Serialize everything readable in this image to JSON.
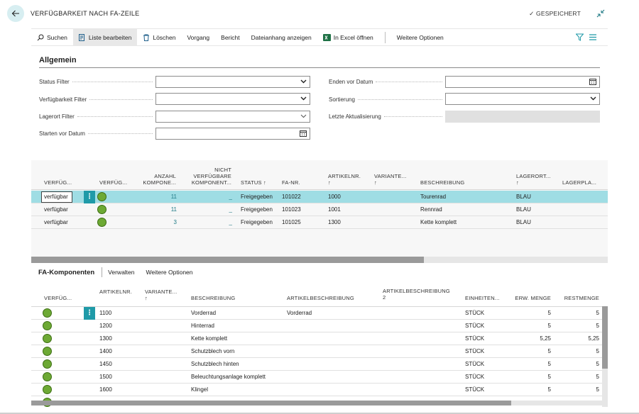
{
  "header": {
    "title": "VERFÜGBARKEIT NACH FA-ZEILE",
    "saved_label": "GESPEICHERT"
  },
  "actions": {
    "search": "Suchen",
    "edit_list": "Liste bearbeiten",
    "delete": "Löschen",
    "process": "Vorgang",
    "report": "Bericht",
    "attachments": "Dateianhang anzeigen",
    "excel": "In Excel öffnen",
    "more": "Weitere Optionen"
  },
  "general": {
    "title": "Allgemein",
    "fields": {
      "status_filter": {
        "label": "Status Filter",
        "value": ""
      },
      "availability_filter": {
        "label": "Verfügbarkeit Filter",
        "value": ""
      },
      "location_filter": {
        "label": "Lagerort Filter",
        "value": ""
      },
      "start_before": {
        "label": "Starten vor Datum",
        "value": ""
      },
      "end_before": {
        "label": "Enden vor Datum",
        "value": ""
      },
      "sorting": {
        "label": "Sortierung",
        "value": ""
      },
      "last_update": {
        "label": "Letzte Aktualisierung",
        "value": ""
      }
    }
  },
  "lines": {
    "columns": {
      "avail": "VERFÜG...",
      "avail2": "VERFÜG...",
      "count1": "ANZAHL",
      "count2": "KOMPONE...",
      "notavail1": "NICHT",
      "notavail2": "VERFÜGBARE",
      "notavail3": "KOMPONENT...",
      "status": "STATUS ↑",
      "fa_no": "FA-NR.",
      "item1": "ARTIKELNR.",
      "item2": "↑",
      "variant1": "VARIANTE...",
      "variant2": "↑",
      "description": "BESCHREIBUNG",
      "location1": "LAGERORT...",
      "location2": "↑",
      "bin": "LAGERPLA..."
    },
    "rows": [
      {
        "avail": "verfügbar",
        "count": "11",
        "notavail": "_",
        "status": "Freigegeben",
        "fa_no": "101022",
        "item": "1000",
        "description": "Tourenrad",
        "location": "BLAU"
      },
      {
        "avail": "verfügbar",
        "count": "11",
        "notavail": "_",
        "status": "Freigegeben",
        "fa_no": "101023",
        "item": "1001",
        "description": "Rennrad",
        "location": "BLAU"
      },
      {
        "avail": "verfügbar",
        "count": "3",
        "notavail": "_",
        "status": "Freigegeben",
        "fa_no": "101025",
        "item": "1300",
        "description": "Kette komplett",
        "location": "BLAU"
      }
    ]
  },
  "components": {
    "title": "FA-Komponenten",
    "manage": "Verwalten",
    "more": "Weitere Optionen",
    "columns": {
      "avail": "VERFÜG...",
      "item": "ARTIKELNR.",
      "variant1": "VARIANTE...",
      "variant2": "↑",
      "description": "BESCHREIBUNG",
      "item_desc": "ARTIKELBESCHREIBUNG",
      "item_desc2_1": "ARTIKELBESCHREIBUNG",
      "item_desc2_2": "2",
      "unit": "EINHEITEN...",
      "exp_qty": "ERW. MENGE",
      "rem_qty": "RESTMENGE"
    },
    "rows": [
      {
        "item": "1100",
        "description": "Vorderrad",
        "item_desc": "Vorderrad",
        "unit": "STÜCK",
        "exp_qty": "5",
        "rem_qty": "5"
      },
      {
        "item": "1200",
        "description": "Hinterrad",
        "item_desc": "",
        "unit": "STÜCK",
        "exp_qty": "5",
        "rem_qty": "5"
      },
      {
        "item": "1300",
        "description": "Kette komplett",
        "item_desc": "",
        "unit": "STÜCK",
        "exp_qty": "5,25",
        "rem_qty": "5,25"
      },
      {
        "item": "1400",
        "description": "Schutzblech vorn",
        "item_desc": "",
        "unit": "STÜCK",
        "exp_qty": "5",
        "rem_qty": "5"
      },
      {
        "item": "1450",
        "description": "Schutzblech hinten",
        "item_desc": "",
        "unit": "STÜCK",
        "exp_qty": "5",
        "rem_qty": "5"
      },
      {
        "item": "1500",
        "description": "Beleuchtungsanlage komplett",
        "item_desc": "",
        "unit": "STÜCK",
        "exp_qty": "5",
        "rem_qty": "5"
      },
      {
        "item": "1600",
        "description": "Klingel",
        "item_desc": "",
        "unit": "STÜCK",
        "exp_qty": "5",
        "rem_qty": "5"
      }
    ]
  },
  "colors": {
    "accent": "#1f9aa8",
    "selected_row": "#9fdde4",
    "status_green": "#6da934"
  }
}
